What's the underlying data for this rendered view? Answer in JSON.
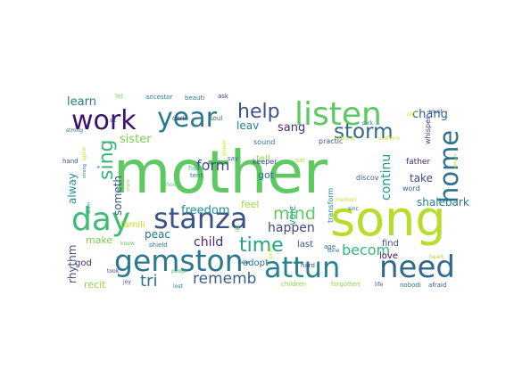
{
  "words": [
    {
      "text": "mother",
      "color": "#5ec962"
    },
    {
      "text": "song",
      "color": "#b5de2b"
    },
    {
      "text": "attun",
      "color": "#26828e"
    },
    {
      "text": "listen",
      "color": "#5ec962"
    },
    {
      "text": "gemston",
      "color": "#2a788e"
    },
    {
      "text": "stanza",
      "color": "#3b528b"
    },
    {
      "text": "day",
      "color": "#3dbc74"
    },
    {
      "text": "need",
      "color": "#31688e"
    },
    {
      "text": "year",
      "color": "#2a788e"
    },
    {
      "text": "work",
      "color": "#3b0f70"
    },
    {
      "text": "home",
      "color": "#2c728e"
    },
    {
      "text": "help",
      "color": "#3b528b"
    },
    {
      "text": "storm",
      "color": "#31688e"
    },
    {
      "text": "sing",
      "color": "#35b779"
    },
    {
      "text": "time",
      "color": "#21a585"
    },
    {
      "text": "mind",
      "color": "#5ec962"
    },
    {
      "text": "rememb",
      "color": "#355f8d"
    },
    {
      "text": "becom",
      "color": "#35b779"
    },
    {
      "text": "tri",
      "color": "#2c728e"
    },
    {
      "text": "form",
      "color": "#3e4989"
    },
    {
      "text": "child",
      "color": "#482878"
    },
    {
      "text": "freedom",
      "color": "#21918c"
    },
    {
      "text": "chang",
      "color": "#355f8d"
    },
    {
      "text": "continu",
      "color": "#1f9e89"
    },
    {
      "text": "happen",
      "color": "#414487"
    },
    {
      "text": "sister",
      "color": "#7ad151"
    },
    {
      "text": "shalebark",
      "color": "#2a788e"
    },
    {
      "text": "learn",
      "color": "#2a788e"
    },
    {
      "text": "sang",
      "color": "#472d7b"
    },
    {
      "text": "leav",
      "color": "#26828e"
    },
    {
      "text": "take",
      "color": "#3e4989"
    },
    {
      "text": "alway",
      "color": "#21918c"
    },
    {
      "text": "someth",
      "color": "#3b528b"
    },
    {
      "text": "rhythm",
      "color": "#3b528b"
    },
    {
      "text": "peac",
      "color": "#2c728e"
    },
    {
      "text": "make",
      "color": "#7ad151"
    },
    {
      "text": "recit",
      "color": "#90d743"
    },
    {
      "text": "famili",
      "color": "#c8e020"
    },
    {
      "text": "god",
      "color": "#46327e"
    },
    {
      "text": "feel",
      "color": "#9fda3a"
    },
    {
      "text": "voic",
      "color": "#20a486"
    },
    {
      "text": "got",
      "color": "#2a788e"
    },
    {
      "text": "tell",
      "color": "#8fd744"
    },
    {
      "text": "last",
      "color": "#3b528b"
    },
    {
      "text": "adopt",
      "color": "#2c728e"
    },
    {
      "text": "find",
      "color": "#3e4989"
    },
    {
      "text": "love",
      "color": "#440154"
    },
    {
      "text": "father",
      "color": "#482878"
    },
    {
      "text": "discov",
      "color": "#365c8d"
    },
    {
      "text": "word",
      "color": "#2f6c8e"
    },
    {
      "text": "transform",
      "color": "#23898e"
    },
    {
      "text": "keeper",
      "color": "#3f4788"
    },
    {
      "text": "sound",
      "color": "#2e6f8e"
    },
    {
      "text": "practic",
      "color": "#39568c"
    },
    {
      "text": "heal",
      "color": "#4ac16d"
    },
    {
      "text": "tent",
      "color": "#2b758e"
    },
    {
      "text": "dark",
      "color": "#404588"
    },
    {
      "text": "soul",
      "color": "#30698e"
    },
    {
      "text": "say",
      "color": "#2c718e"
    },
    {
      "text": "sat",
      "color": "#b2dd2d"
    },
    {
      "text": "whisper",
      "color": "#443983"
    },
    {
      "text": "hand",
      "color": "#38578c"
    },
    {
      "text": "strong",
      "color": "#2a768e"
    },
    {
      "text": "sit",
      "color": "#3d4d8a"
    },
    {
      "text": "let",
      "color": "#7fd34e"
    },
    {
      "text": "ancestor",
      "color": "#27808e"
    },
    {
      "text": "beauti",
      "color": "#2d708e"
    },
    {
      "text": "ask",
      "color": "#463480"
    },
    {
      "text": "old",
      "color": "#e2e418"
    },
    {
      "text": "must",
      "color": "#3a538b"
    },
    {
      "text": "pick",
      "color": "#26818e"
    },
    {
      "text": "without",
      "color": "#b8de29"
    },
    {
      "text": "outform",
      "color": "#d5e21a"
    },
    {
      "text": "choos",
      "color": "#5cc863"
    },
    {
      "text": "knew",
      "color": "#5ac864"
    },
    {
      "text": "shield",
      "color": "#2a778e"
    },
    {
      "text": "age",
      "color": "#30698e"
    },
    {
      "text": "tone",
      "color": "#2e6d8e"
    },
    {
      "text": "hard",
      "color": "#3a548c"
    },
    {
      "text": "children",
      "color": "#8bd646"
    },
    {
      "text": "forgotten",
      "color": "#8ed645"
    },
    {
      "text": "life",
      "color": "#3c4f8a"
    },
    {
      "text": "nobodi",
      "color": "#2c738e"
    },
    {
      "text": "afraid",
      "color": "#38598c"
    },
    {
      "text": "lost",
      "color": "#2a788e"
    },
    {
      "text": "joy",
      "color": "#3d4d8a"
    },
    {
      "text": "took",
      "color": "#423f85"
    },
    {
      "text": "peopl",
      "color": "#40bd72"
    },
    {
      "text": "heart",
      "color": "#a8db34"
    },
    {
      "text": "new",
      "color": "#34618d"
    },
    {
      "text": "sinc",
      "color": "#2a778e"
    },
    {
      "text": "memori",
      "color": "#c0df25"
    },
    {
      "text": "prais",
      "color": "#d8e219"
    },
    {
      "text": "litt",
      "color": "#5ec962"
    },
    {
      "text": "power",
      "color": "#d0e11c"
    },
    {
      "text": "ignor",
      "color": "#bddf26"
    },
    {
      "text": "remain",
      "color": "#a2da37"
    },
    {
      "text": "drum",
      "color": "#1fa088"
    },
    {
      "text": "strong",
      "color": "#2a768e"
    },
    {
      "text": "share",
      "color": "#99d83d"
    }
  ]
}
